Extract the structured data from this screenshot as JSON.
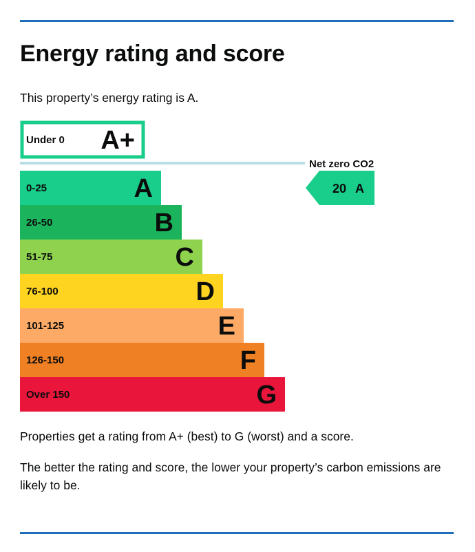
{
  "header": {
    "title": "Energy rating and score",
    "rating_statement": "This property’s energy rating is A.",
    "rule_color": "#1d70b8"
  },
  "chart_data": {
    "type": "bar",
    "categories": [
      "A+",
      "A",
      "B",
      "C",
      "D",
      "E",
      "F",
      "G"
    ],
    "ranges": [
      "Under 0",
      "0-25",
      "26-50",
      "51-75",
      "76-100",
      "101-125",
      "126-150",
      "Over 150"
    ],
    "colors": [
      "#ffffff",
      "#19cd8a",
      "#1bb35c",
      "#8ed24e",
      "#ffd420",
      "#fcaa65",
      "#ef8023",
      "#e9153b"
    ],
    "outline_colors": [
      "#19cd8a",
      null,
      null,
      null,
      null,
      null,
      null,
      null
    ],
    "net_zero_label": "Net zero CO2",
    "net_zero_line_color": "#b9dde4",
    "current_rating": {
      "score": "20",
      "band": "A",
      "color": "#19cd8a"
    }
  },
  "footer": {
    "explanation_1": "Properties get a rating from A+ (best) to G (worst) and a score.",
    "explanation_2": "The better the rating and score, the lower your property’s carbon emissions are likely to be."
  }
}
